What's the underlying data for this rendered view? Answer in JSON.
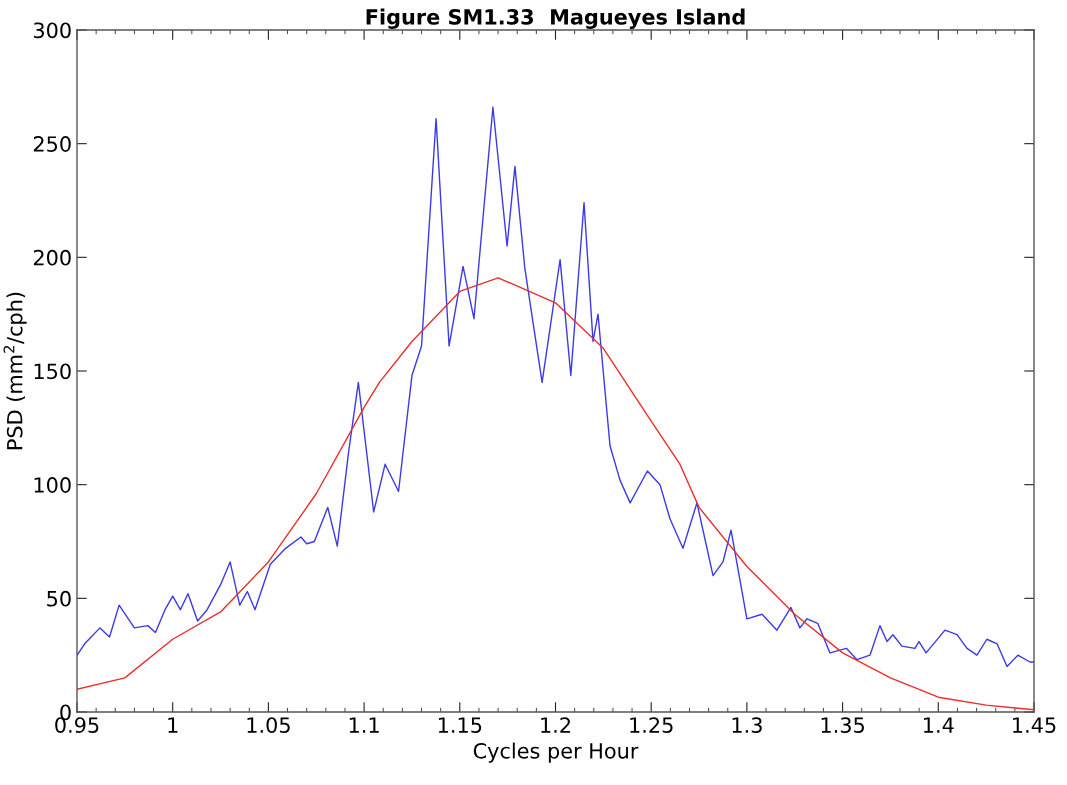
{
  "chart_data": {
    "type": "line",
    "title": "Figure SM1.33  Magueyes Island",
    "xlabel": "Cycles per Hour",
    "ylabel": "PSD (mm$^{2}$/cph)",
    "xlim": [
      0.95,
      1.45
    ],
    "xticks": [
      0.95,
      1,
      1.05,
      1.1,
      1.15,
      1.2,
      1.25,
      1.3,
      1.35,
      1.4,
      1.45
    ],
    "ylim": [
      0,
      300
    ],
    "yticks": [
      0,
      50,
      100,
      150,
      200,
      250,
      300
    ],
    "grid": false,
    "marker": "none",
    "line_style": "solid",
    "series": [
      {
        "color": "#3a3ae8",
        "x": [
          0.95,
          0.954,
          0.962,
          0.967,
          0.972,
          0.98,
          0.987,
          0.991,
          0.996,
          1.0,
          1.004,
          1.008,
          1.013,
          1.018,
          1.025,
          1.03,
          1.035,
          1.039,
          1.043,
          1.051,
          1.059,
          1.067,
          1.07,
          1.074,
          1.081,
          1.086,
          1.092,
          1.097,
          1.105,
          1.111,
          1.118,
          1.125,
          1.13,
          1.1376,
          1.1444,
          1.1517,
          1.1574,
          1.1673,
          1.1747,
          1.1788,
          1.184,
          1.193,
          1.2024,
          1.208,
          1.2149,
          1.2196,
          1.2222,
          1.2285,
          1.2337,
          1.239,
          1.248,
          1.2546,
          1.2598,
          1.2666,
          1.2739,
          1.2823,
          1.2875,
          1.2917,
          1.3,
          1.3079,
          1.3157,
          1.323,
          1.3277,
          1.3314,
          1.337,
          1.3434,
          1.352,
          1.3575,
          1.3643,
          1.3695,
          1.3732,
          1.3763,
          1.381,
          1.3878,
          1.3899,
          1.3936,
          1.4035,
          1.4098,
          1.415,
          1.4202,
          1.4254,
          1.4307,
          1.4359,
          1.4416,
          1.4479,
          1.45
        ],
        "values": [
          25,
          30,
          37,
          33,
          47,
          37,
          38,
          35,
          45,
          51,
          45,
          52,
          40,
          45,
          56,
          66,
          47,
          53,
          45,
          65,
          72,
          77,
          74,
          75,
          90,
          73,
          115,
          145,
          88,
          109,
          97,
          148,
          161,
          261,
          161,
          196,
          173,
          266,
          205,
          240,
          195,
          145,
          199,
          148,
          224,
          163,
          175,
          117,
          102,
          92,
          106,
          100,
          85,
          72,
          92,
          60,
          66,
          80,
          41,
          43,
          36,
          46,
          37,
          41,
          39,
          26,
          28,
          23,
          25,
          38,
          31,
          34,
          29,
          28,
          31,
          26,
          36,
          34,
          28,
          25,
          32,
          30,
          20,
          25,
          22,
          22
        ]
      },
      {
        "color": "#e8302a",
        "x": [
          0.95,
          0.975,
          1.0,
          1.025,
          1.05,
          1.075,
          1.1,
          1.108,
          1.125,
          1.15,
          1.17,
          1.2,
          1.225,
          1.25,
          1.265,
          1.275,
          1.3,
          1.325,
          1.35,
          1.375,
          1.4,
          1.425,
          1.45
        ],
        "values": [
          10,
          15,
          32,
          44,
          66,
          96,
          134,
          145,
          163,
          185,
          191,
          180,
          160,
          128,
          109,
          90,
          64,
          43,
          26,
          15,
          6.5,
          3,
          1
        ]
      }
    ]
  }
}
